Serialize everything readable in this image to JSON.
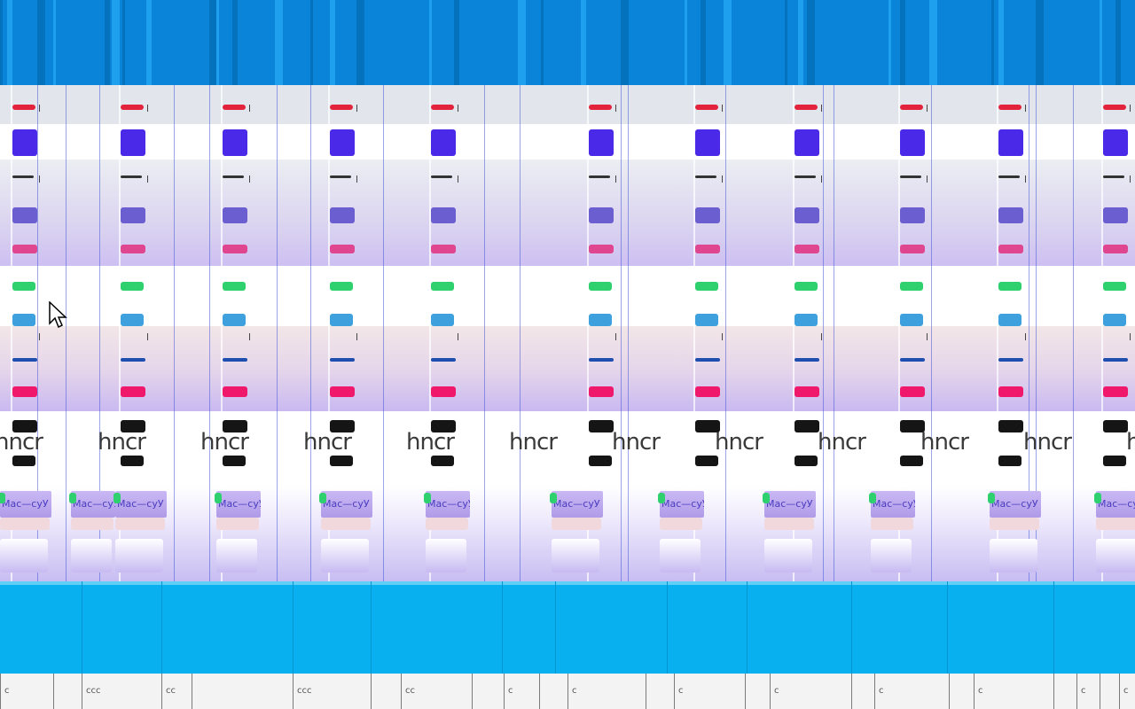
{
  "screen": {
    "description_state": "display-corruption"
  },
  "top_band": {
    "color": "#0a84d8",
    "accent_color": "#1ea0ee"
  },
  "bottom_band": {
    "color": "#08b0f0"
  },
  "colors": {
    "red": "#e3233b",
    "blue": "#4a2ae8",
    "dark": "#333333",
    "indigo": "#6a5ed0",
    "pink": "#e0468f",
    "green": "#2ed16e",
    "skyblue": "#3ea0dc",
    "navy": "#1e4fb0",
    "magenta": "#f0186a",
    "black": "#151515",
    "lavender": "#c7b7f2",
    "grey_bg": "#e2e6ec"
  },
  "glitch_text": {
    "ghost": "hncr",
    "chip_label": "Мас—суУ"
  },
  "taskbar": {
    "segments": [
      {
        "label": "c"
      },
      {
        "label": ""
      },
      {
        "label": "ccc"
      },
      {
        "label": "cc"
      },
      {
        "label": ""
      },
      {
        "label": "ccc"
      },
      {
        "label": ""
      },
      {
        "label": "cc"
      },
      {
        "label": ""
      },
      {
        "label": "c"
      },
      {
        "label": ""
      },
      {
        "label": "c"
      },
      {
        "label": ""
      },
      {
        "label": "c"
      },
      {
        "label": ""
      },
      {
        "label": "c"
      },
      {
        "label": ""
      },
      {
        "label": "c"
      },
      {
        "label": ""
      },
      {
        "label": "c"
      },
      {
        "label": ""
      },
      {
        "label": "c"
      },
      {
        "label": ""
      },
      {
        "label": "c"
      }
    ]
  },
  "cursor": {
    "icon": "arrow-pointer-icon"
  }
}
